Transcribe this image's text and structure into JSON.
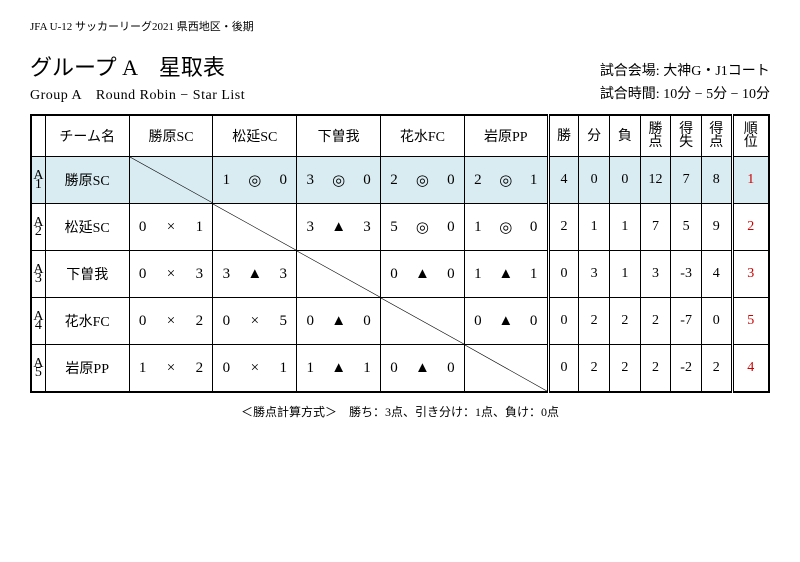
{
  "league_header": "JFA U-12 サッカーリーグ2021 県西地区・後期",
  "title_jp": "グループ A　星取表",
  "title_en": "Group A　Round Robin − Star List",
  "venue_label": "試合会場:",
  "venue_value": "大神G・J1コート",
  "time_label": "試合時間:",
  "time_value": "10分 − 5分 − 10分",
  "hdr_team": "チーム名",
  "opp_headers": [
    "勝原SC",
    "松延SC",
    "下曽我",
    "花水FC",
    "岩原PP"
  ],
  "stat_headers": [
    "勝",
    "分",
    "負",
    "勝点",
    "得失",
    "得点",
    "順位"
  ],
  "rows": [
    {
      "idx_top": "A",
      "idx_bot": "1",
      "name": "勝原SC",
      "hl": true,
      "cells": [
        null,
        {
          "a": "1",
          "s": "◎",
          "b": "0"
        },
        {
          "a": "3",
          "s": "◎",
          "b": "0"
        },
        {
          "a": "2",
          "s": "◎",
          "b": "0"
        },
        {
          "a": "2",
          "s": "◎",
          "b": "1"
        }
      ],
      "stats": [
        "4",
        "0",
        "0",
        "12",
        "7",
        "8"
      ],
      "rank": "1"
    },
    {
      "idx_top": "A",
      "idx_bot": "2",
      "name": "松延SC",
      "hl": false,
      "cells": [
        {
          "a": "0",
          "s": "×",
          "b": "1"
        },
        null,
        {
          "a": "3",
          "s": "▲",
          "b": "3"
        },
        {
          "a": "5",
          "s": "◎",
          "b": "0"
        },
        {
          "a": "1",
          "s": "◎",
          "b": "0"
        }
      ],
      "stats": [
        "2",
        "1",
        "1",
        "7",
        "5",
        "9"
      ],
      "rank": "2"
    },
    {
      "idx_top": "A",
      "idx_bot": "3",
      "name": "下曽我",
      "hl": false,
      "cells": [
        {
          "a": "0",
          "s": "×",
          "b": "3"
        },
        {
          "a": "3",
          "s": "▲",
          "b": "3"
        },
        null,
        {
          "a": "0",
          "s": "▲",
          "b": "0"
        },
        {
          "a": "1",
          "s": "▲",
          "b": "1"
        }
      ],
      "stats": [
        "0",
        "3",
        "1",
        "3",
        "-3",
        "4"
      ],
      "rank": "3"
    },
    {
      "idx_top": "A",
      "idx_bot": "4",
      "name": "花水FC",
      "hl": false,
      "cells": [
        {
          "a": "0",
          "s": "×",
          "b": "2"
        },
        {
          "a": "0",
          "s": "×",
          "b": "5"
        },
        {
          "a": "0",
          "s": "▲",
          "b": "0"
        },
        null,
        {
          "a": "0",
          "s": "▲",
          "b": "0"
        }
      ],
      "stats": [
        "0",
        "2",
        "2",
        "2",
        "-7",
        "0"
      ],
      "rank": "5"
    },
    {
      "idx_top": "A",
      "idx_bot": "5",
      "name": "岩原PP",
      "hl": false,
      "cells": [
        {
          "a": "1",
          "s": "×",
          "b": "2"
        },
        {
          "a": "0",
          "s": "×",
          "b": "1"
        },
        {
          "a": "1",
          "s": "▲",
          "b": "1"
        },
        {
          "a": "0",
          "s": "▲",
          "b": "0"
        },
        null
      ],
      "stats": [
        "0",
        "2",
        "2",
        "2",
        "-2",
        "2"
      ],
      "rank": "4"
    }
  ],
  "footnote": "＜勝点計算方式＞　勝ち：3点、引き分け：1点、負け：0点"
}
